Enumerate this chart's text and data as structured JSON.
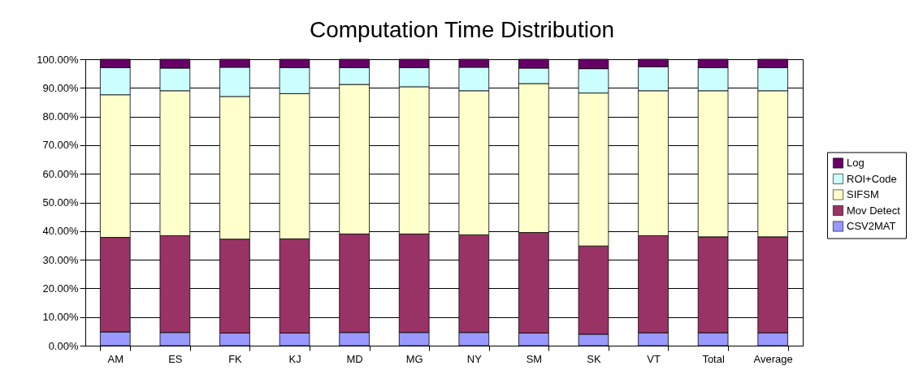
{
  "chart_data": {
    "type": "bar",
    "title": "Computation Time Distribution",
    "stacked": true,
    "categories": [
      "AM",
      "ES",
      "FK",
      "KJ",
      "MD",
      "MG",
      "NY",
      "SM",
      "SK",
      "VT",
      "Total",
      "Average"
    ],
    "series": [
      {
        "name": "CSV2MAT",
        "color": "#9999ff",
        "values": [
          4.8,
          4.6,
          4.4,
          4.4,
          4.6,
          4.6,
          4.6,
          4.4,
          4.0,
          4.5,
          4.5,
          4.5
        ]
      },
      {
        "name": "Mov Detect",
        "color": "#993366",
        "values": [
          33.0,
          33.8,
          32.8,
          32.9,
          34.4,
          34.4,
          34.1,
          35.1,
          30.8,
          33.9,
          33.5,
          33.5
        ]
      },
      {
        "name": "SIFSM",
        "color": "#ffffcc",
        "values": [
          49.8,
          50.6,
          49.8,
          50.7,
          52.2,
          51.4,
          50.3,
          52.0,
          53.4,
          50.6,
          51.0,
          51.0
        ]
      },
      {
        "name": "ROI+Code",
        "color": "#ccffff",
        "values": [
          9.5,
          7.9,
          10.2,
          9.1,
          5.9,
          6.7,
          8.2,
          5.4,
          8.5,
          8.4,
          8.1,
          8.1
        ]
      },
      {
        "name": "Log",
        "color": "#660066",
        "values": [
          2.9,
          3.1,
          2.8,
          2.9,
          2.9,
          2.9,
          2.8,
          3.1,
          3.3,
          2.6,
          2.9,
          2.9
        ]
      }
    ],
    "ylim": [
      0,
      100
    ],
    "yticks": [
      {
        "value": 0,
        "label": "0.00%"
      },
      {
        "value": 10,
        "label": "10.00%"
      },
      {
        "value": 20,
        "label": "20.00%"
      },
      {
        "value": 30,
        "label": "30.00%"
      },
      {
        "value": 40,
        "label": "40.00%"
      },
      {
        "value": 50,
        "label": "50.00%"
      },
      {
        "value": 60,
        "label": "60.00%"
      },
      {
        "value": 70,
        "label": "70.00%"
      },
      {
        "value": 80,
        "label": "80.00%"
      },
      {
        "value": 90,
        "label": "90.00%"
      },
      {
        "value": 100,
        "label": "100.00%"
      }
    ],
    "grid": "y",
    "legend": "right"
  }
}
